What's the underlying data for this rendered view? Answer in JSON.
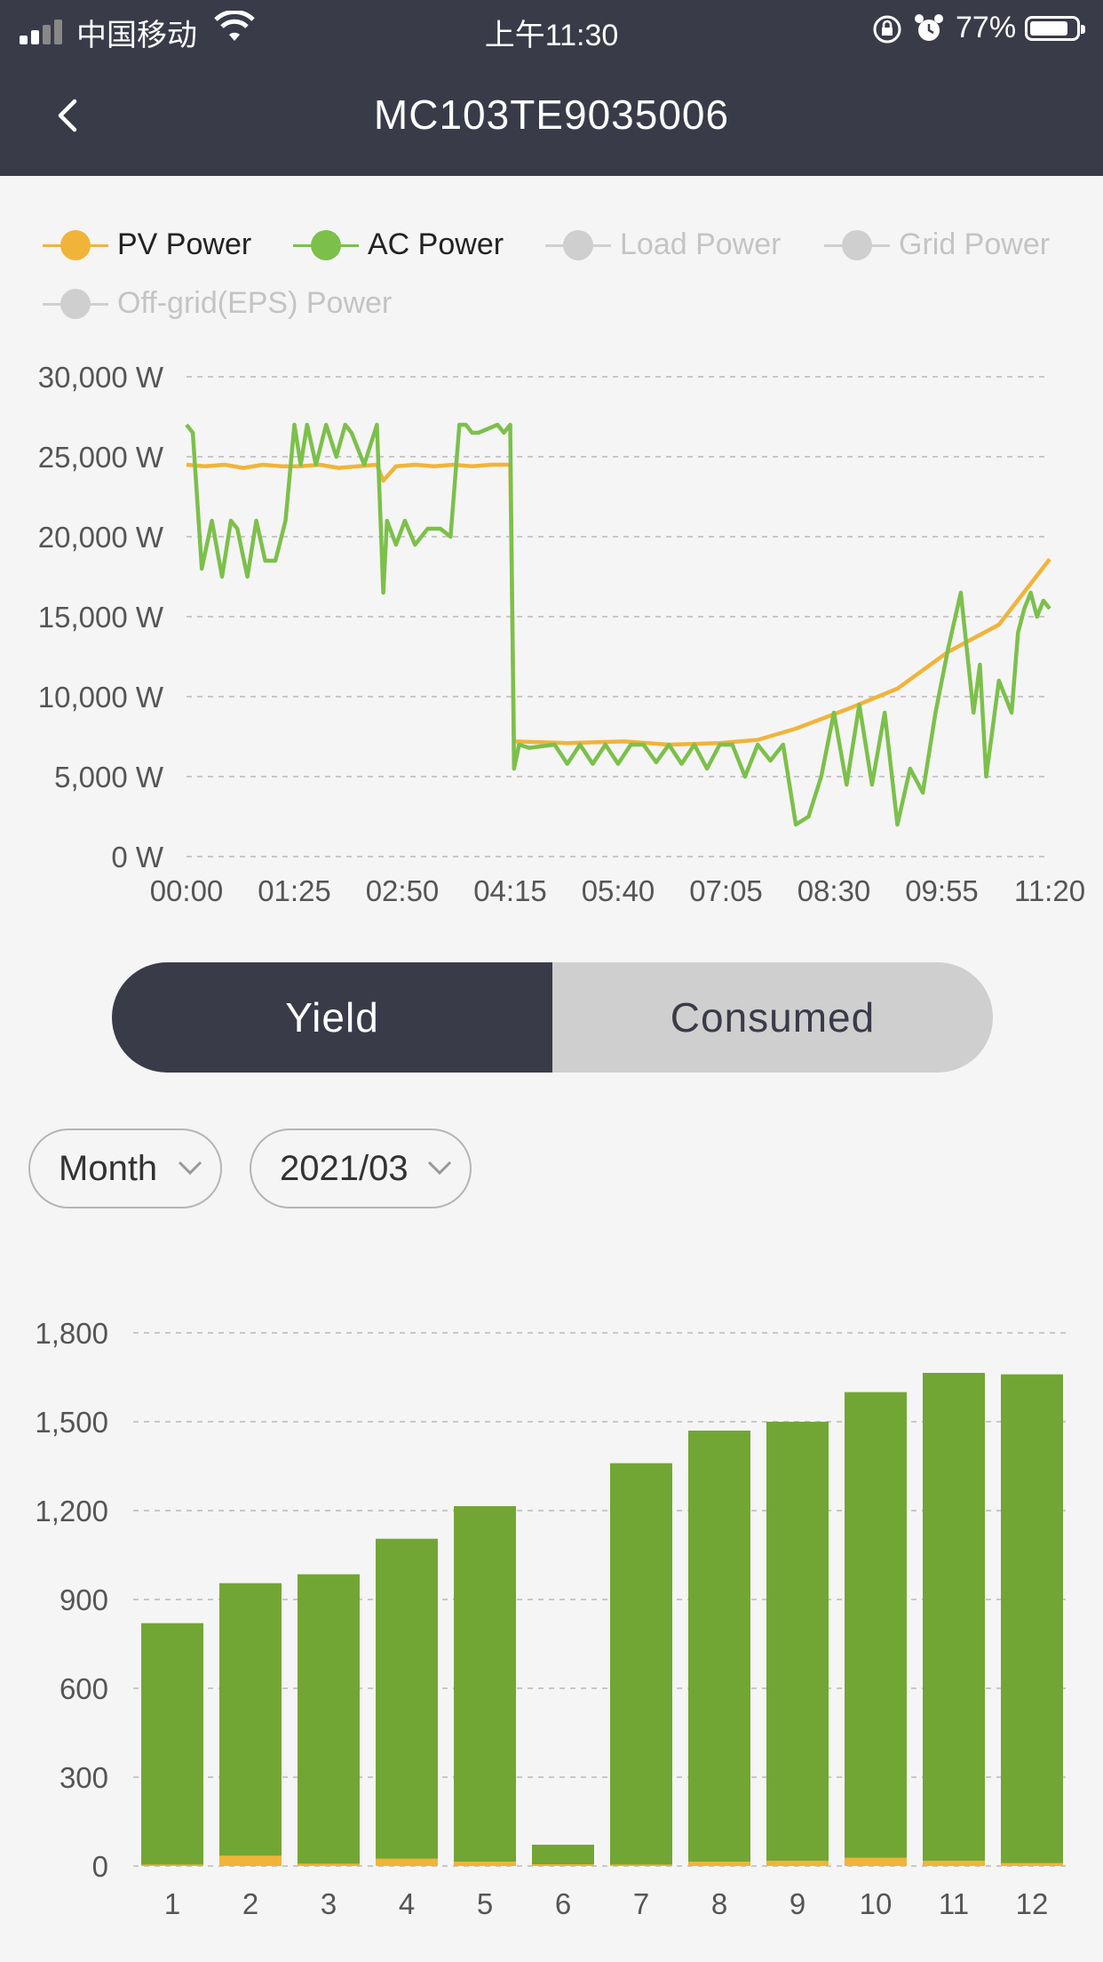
{
  "status_bar": {
    "carrier": "中国移动",
    "time": "上午11:30",
    "battery_percent": "77%"
  },
  "nav": {
    "title": "MC103TE9035006",
    "back_icon": "chevron-left-icon"
  },
  "legend": [
    {
      "label": "PV Power",
      "color": "#f0b43a",
      "active": true
    },
    {
      "label": "AC Power",
      "color": "#7cc04b",
      "active": true
    },
    {
      "label": "Load Power",
      "color": "#c9c9c9",
      "active": false
    },
    {
      "label": "Grid Power",
      "color": "#c9c9c9",
      "active": false
    },
    {
      "label": "Off-grid(EPS) Power",
      "color": "#c9c9c9",
      "active": false
    }
  ],
  "toggle": {
    "yield": "Yield",
    "consumed": "Consumed",
    "selected": "Yield"
  },
  "filters": {
    "period": "Month",
    "date": "2021/03"
  },
  "colors": {
    "header": "#3a3b49",
    "pv": "#f0b43a",
    "ac": "#7cc04b",
    "bar": "#72a634",
    "bar_minor": "#f0b43a"
  },
  "chart_data": [
    {
      "type": "line",
      "x_ticks": [
        "00:00",
        "01:25",
        "02:50",
        "04:15",
        "05:40",
        "07:05",
        "08:30",
        "09:55",
        "11:20"
      ],
      "y_ticks": [
        "30,000 W",
        "25,000 W",
        "20,000 W",
        "15,000 W",
        "10,000 W",
        "5,000 W",
        "0 W"
      ],
      "ylim": [
        0,
        30000
      ],
      "xlim_minutes": [
        0,
        680
      ],
      "series": [
        {
          "name": "PV Power",
          "x": [
            0,
            15,
            30,
            45,
            60,
            75,
            90,
            105,
            120,
            135,
            150,
            155,
            165,
            180,
            195,
            210,
            225,
            240,
            255,
            258,
            300,
            345,
            380,
            420,
            450,
            480,
            520,
            560,
            600,
            640,
            680
          ],
          "y": [
            24500,
            24400,
            24500,
            24300,
            24500,
            24400,
            24400,
            24500,
            24300,
            24400,
            24500,
            23500,
            24400,
            24500,
            24400,
            24500,
            24400,
            24500,
            24500,
            7200,
            7100,
            7200,
            7000,
            7100,
            7300,
            8000,
            9200,
            10500,
            12800,
            14500,
            18600
          ]
        },
        {
          "name": "AC Power",
          "x": [
            0,
            5,
            12,
            20,
            28,
            35,
            40,
            48,
            55,
            62,
            70,
            78,
            85,
            90,
            95,
            102,
            110,
            118,
            125,
            130,
            140,
            150,
            155,
            158,
            165,
            172,
            180,
            190,
            200,
            208,
            215,
            220,
            225,
            230,
            245,
            250,
            255,
            258,
            262,
            270,
            290,
            300,
            310,
            320,
            330,
            340,
            350,
            360,
            370,
            380,
            390,
            400,
            410,
            420,
            430,
            440,
            450,
            460,
            470,
            480,
            490,
            500,
            510,
            520,
            530,
            540,
            550,
            560,
            570,
            580,
            590,
            600,
            610,
            620,
            625,
            630,
            640,
            650,
            655,
            660,
            665,
            670,
            675,
            680
          ],
          "y": [
            27000,
            26500,
            18000,
            21000,
            17500,
            21000,
            20500,
            17500,
            21000,
            18500,
            18500,
            21000,
            27000,
            24500,
            27000,
            24500,
            27000,
            25000,
            27000,
            26500,
            24500,
            27000,
            16500,
            21000,
            19500,
            21000,
            19500,
            20500,
            20500,
            20000,
            27000,
            27000,
            26500,
            26500,
            27000,
            26500,
            27000,
            5500,
            7000,
            6800,
            7000,
            5800,
            7000,
            5800,
            7000,
            5800,
            7000,
            7000,
            5900,
            7000,
            5800,
            7000,
            5500,
            7000,
            7000,
            5000,
            7000,
            6000,
            7000,
            2000,
            2500,
            5000,
            9000,
            4500,
            9500,
            4500,
            9000,
            2000,
            5500,
            4000,
            9000,
            13000,
            16500,
            9000,
            12000,
            5000,
            11000,
            9000,
            14000,
            15500,
            16500,
            15000,
            16000,
            15500
          ]
        }
      ]
    },
    {
      "type": "bar",
      "categories": [
        "1",
        "2",
        "3",
        "4",
        "5",
        "6",
        "7",
        "8",
        "9",
        "10",
        "11",
        "12"
      ],
      "y_ticks": [
        "1,800",
        "1,500",
        "1,200",
        "900",
        "600",
        "300",
        "0"
      ],
      "ylim": [
        0,
        1800
      ],
      "series": [
        {
          "name": "",
          "values": [
            820,
            955,
            985,
            1105,
            1215,
            72,
            1360,
            1470,
            1500,
            1600,
            1665,
            1660
          ]
        },
        {
          "name": "",
          "values": [
            5,
            35,
            8,
            25,
            15,
            6,
            5,
            15,
            18,
            28,
            18,
            10
          ]
        }
      ]
    }
  ]
}
